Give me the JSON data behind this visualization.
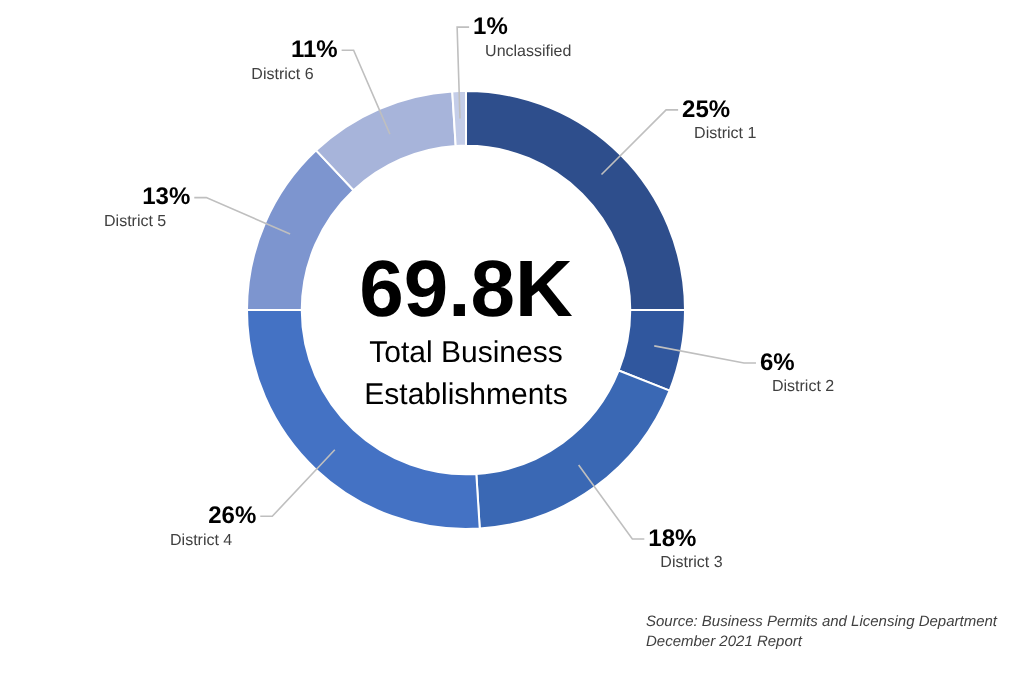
{
  "chart_data": {
    "type": "donut",
    "categories": [
      "District 1",
      "District 2",
      "District 3",
      "District 4",
      "District 5",
      "District 6",
      "Unclassified"
    ],
    "values": [
      25,
      6,
      18,
      26,
      13,
      11,
      1
    ],
    "value_labels": [
      "25%",
      "6%",
      "18%",
      "26%",
      "13%",
      "11%",
      "1%"
    ],
    "colors": [
      "#2e4e8c",
      "#30579e",
      "#3a68b4",
      "#4472c4",
      "#7d95cf",
      "#a7b4da",
      "#c4cde8"
    ],
    "legend": false,
    "annotations": [
      "69.8K",
      "Total Business Establishments",
      "Source: Business Permits and Licensing Department",
      "December 2021 Report"
    ]
  }
}
